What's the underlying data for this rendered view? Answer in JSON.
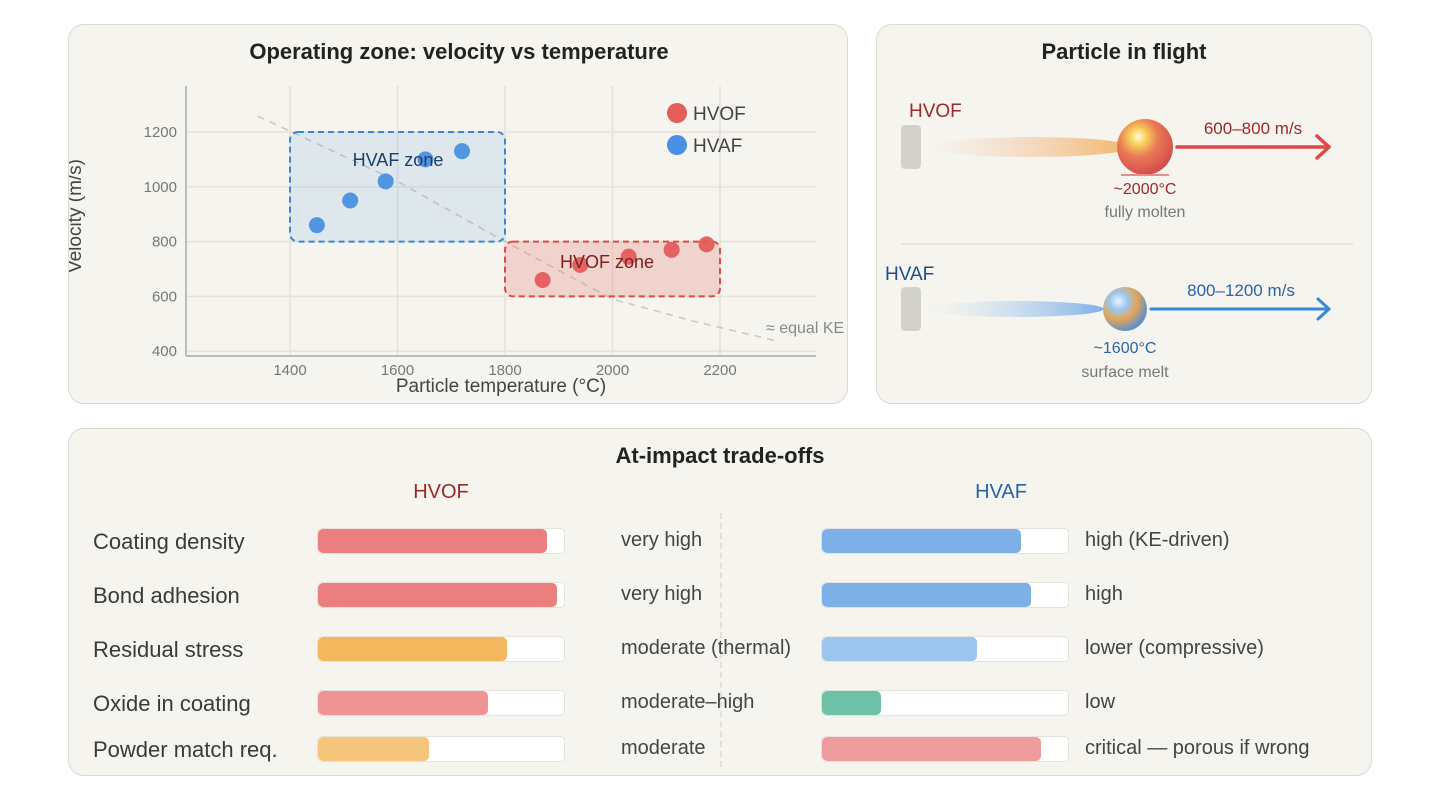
{
  "chart_panel": {
    "title": "Operating zone: velocity vs temperature",
    "zone_labels": {
      "hvaf": "HVAF zone",
      "hvof": "HVOF zone"
    },
    "curve_label": "≈ equal KE"
  },
  "chart_data": {
    "type": "scatter",
    "title": "Operating zone: velocity vs temperature",
    "xlabel": "Particle temperature (°C)",
    "ylabel": "Velocity (m/s)",
    "xlim": [
      1200,
      2400
    ],
    "ylim": [
      380,
      1370
    ],
    "xticks": [
      1400,
      1600,
      1800,
      2000,
      2200
    ],
    "yticks": [
      400,
      600,
      800,
      1000,
      1200
    ],
    "grid": true,
    "legend": "top-right",
    "series": [
      {
        "name": "HVOF",
        "color": "#e45c5c",
        "points": [
          [
            1870,
            660
          ],
          [
            1940,
            715
          ],
          [
            2030,
            745
          ],
          [
            2110,
            770
          ],
          [
            2175,
            790
          ]
        ]
      },
      {
        "name": "HVAF",
        "color": "#4a90e2",
        "points": [
          [
            1450,
            860
          ],
          [
            1512,
            950
          ],
          [
            1578,
            1020
          ],
          [
            1652,
            1100
          ],
          [
            1720,
            1130
          ]
        ]
      }
    ],
    "zones": [
      {
        "label": "HVAF zone",
        "x": [
          1400,
          1800
        ],
        "y": [
          800,
          1200
        ],
        "color": "#3a86d8"
      },
      {
        "label": "HVOF zone",
        "x": [
          1800,
          2200
        ],
        "y": [
          600,
          800
        ],
        "color": "#e04848"
      }
    ],
    "reference_curve": {
      "label": "≈ equal KE",
      "points": [
        [
          1340,
          1258
        ],
        [
          1600,
          1020
        ],
        [
          1800,
          800
        ],
        [
          2000,
          590
        ],
        [
          2150,
          510
        ],
        [
          2300,
          440
        ]
      ]
    }
  },
  "flight_panel": {
    "title": "Particle in flight",
    "hvof": {
      "label": "HVOF",
      "speed": "600–800 m/s",
      "temp": "~2000°C",
      "state": "fully molten"
    },
    "hvaf": {
      "label": "HVAF",
      "speed": "800–1200 m/s",
      "temp": "~1600°C",
      "state": "surface melt"
    }
  },
  "tradeoffs": {
    "title": "At-impact trade-offs",
    "hvof_header": "HVOF",
    "hvaf_header": "HVAF",
    "rows": [
      {
        "label": "Coating density",
        "hvof": {
          "value": 0.93,
          "text": "very high",
          "color": "#eb7f7f"
        },
        "hvaf": {
          "value": 0.81,
          "text": "high (KE-driven)",
          "color": "#7eb0e8"
        }
      },
      {
        "label": "Bond adhesion",
        "hvof": {
          "value": 0.97,
          "text": "very high",
          "color": "#eb7f7f"
        },
        "hvaf": {
          "value": 0.85,
          "text": "high",
          "color": "#7eb0e8"
        }
      },
      {
        "label": "Residual stress",
        "hvof": {
          "value": 0.77,
          "text": "moderate (thermal)",
          "color": "#f3b85e"
        },
        "hvaf": {
          "value": 0.63,
          "text": "lower (compressive)",
          "color": "#9ec5ef"
        }
      },
      {
        "label": "Oxide in coating",
        "hvof": {
          "value": 0.69,
          "text": "moderate–high",
          "color": "#ef9393"
        },
        "hvaf": {
          "value": 0.24,
          "text": "low",
          "color": "#6cc1a7"
        }
      },
      {
        "label": "Powder match req.",
        "hvof": {
          "value": 0.45,
          "text": "moderate",
          "color": "#f5c57a"
        },
        "hvaf": {
          "value": 0.89,
          "text": "critical — porous if wrong",
          "color": "#ee9b9b"
        }
      }
    ]
  }
}
